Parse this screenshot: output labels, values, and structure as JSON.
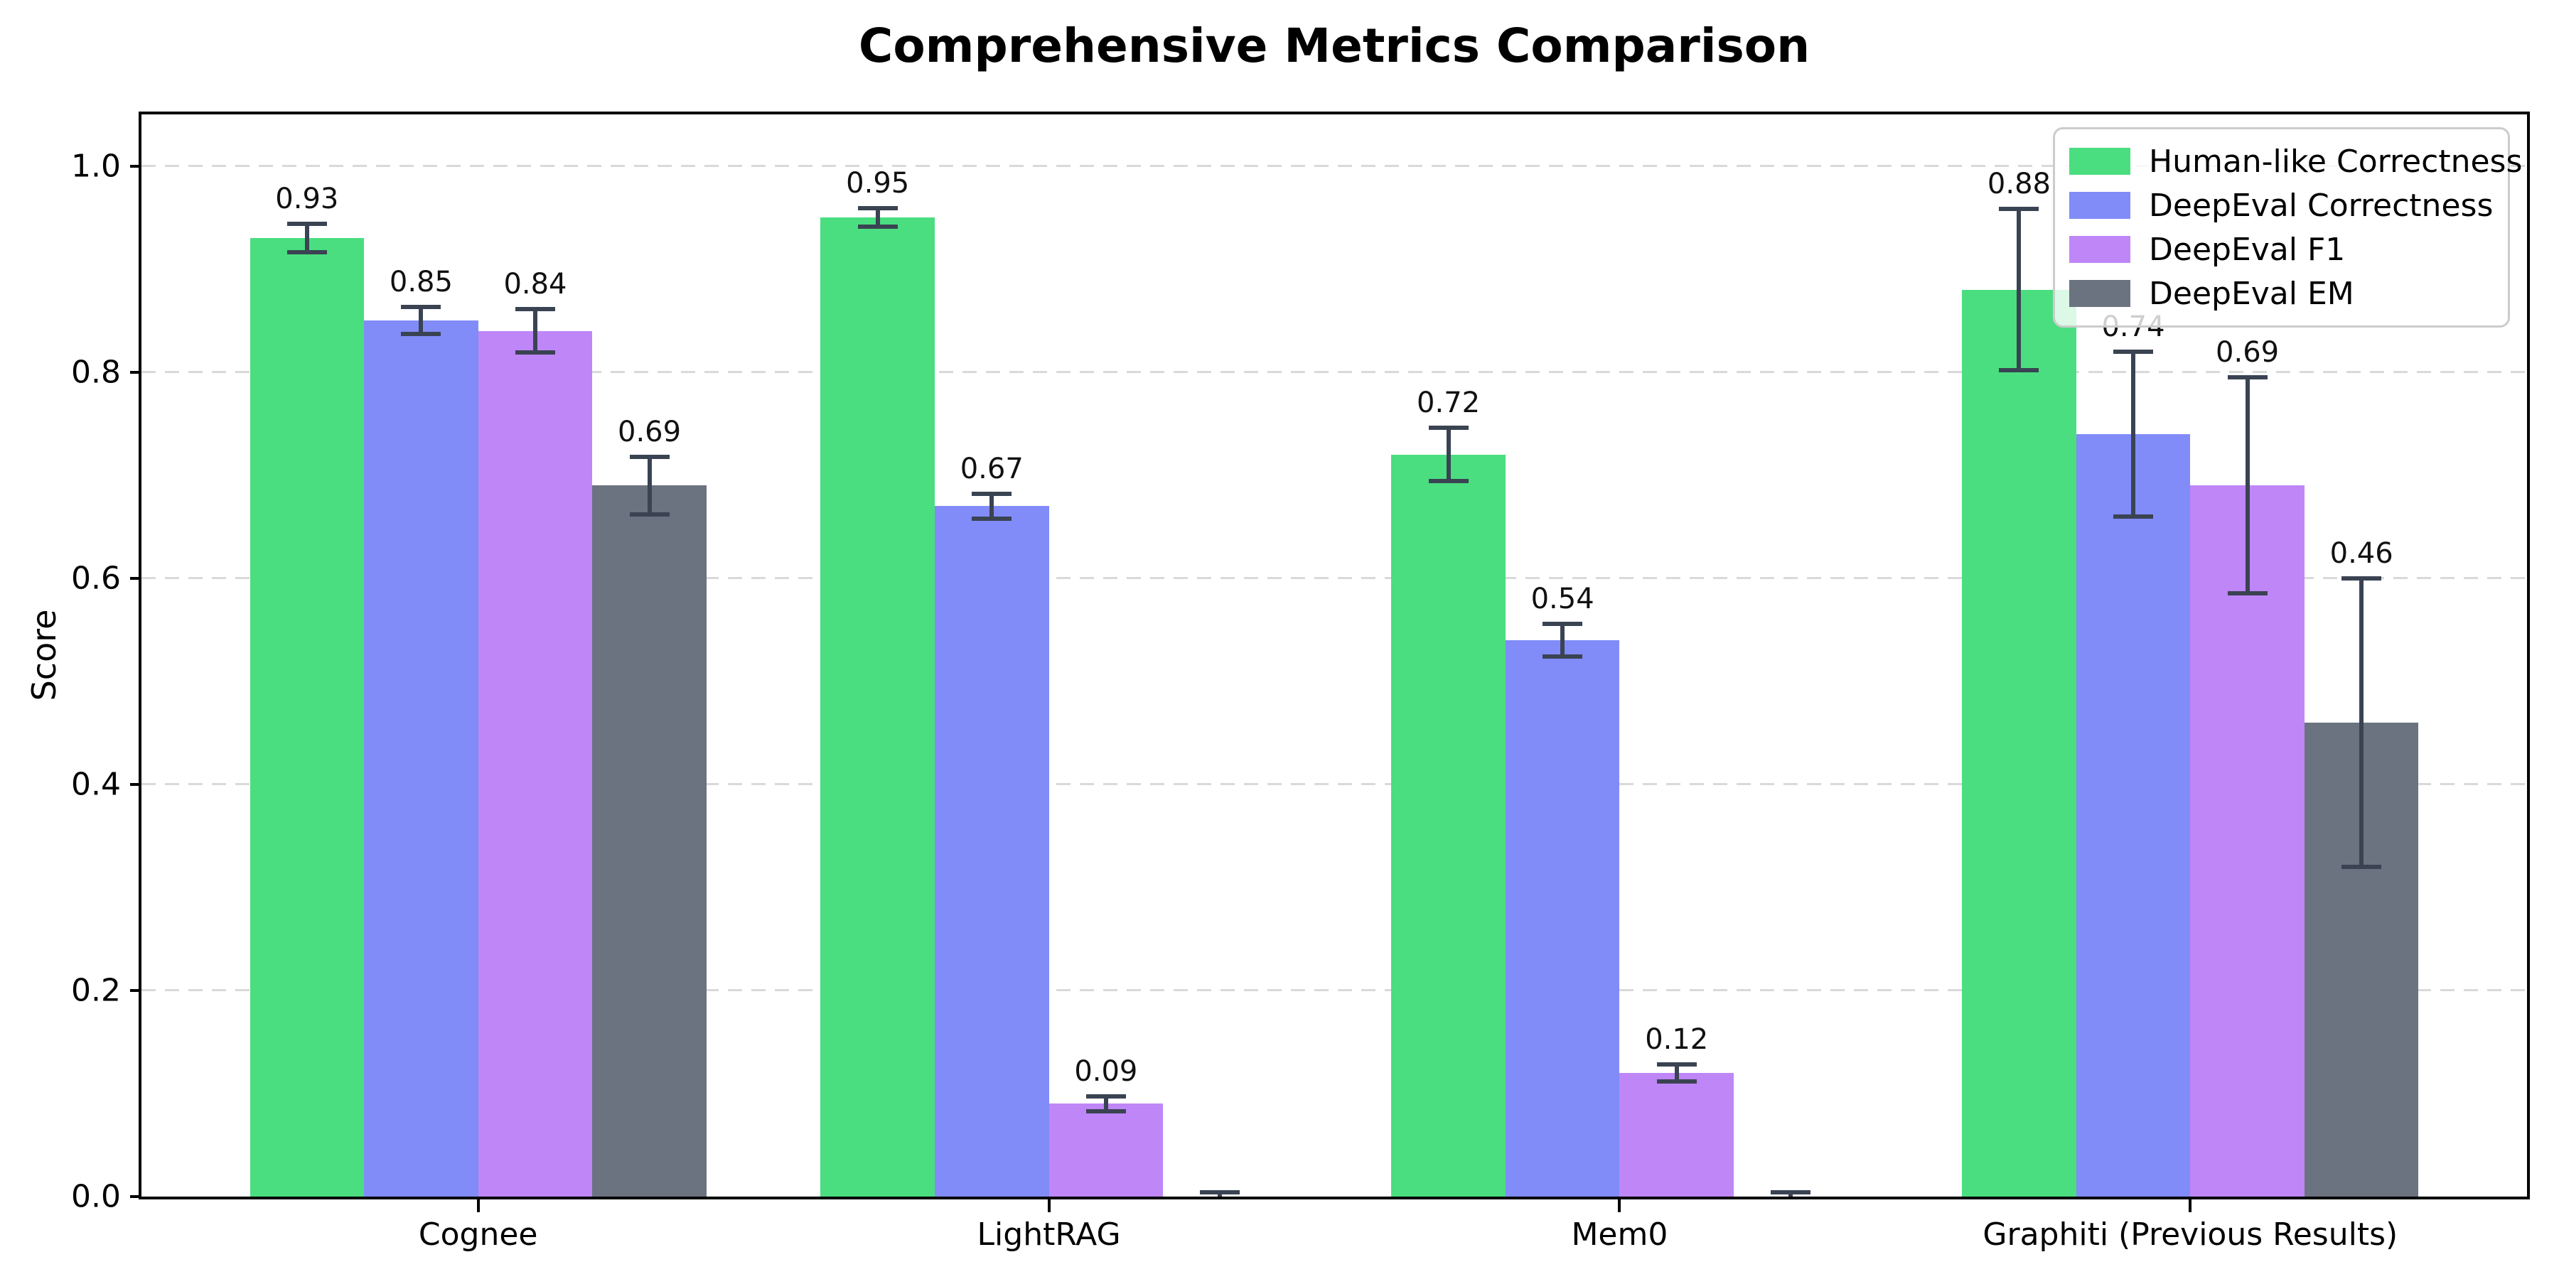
{
  "chart_data": {
    "type": "bar",
    "title": "Comprehensive Metrics Comparison",
    "ylabel": "Score",
    "xlabel": "",
    "categories": [
      "Cognee",
      "LightRAG",
      "Mem0",
      "Graphiti (Previous Results)"
    ],
    "series": [
      {
        "name": "Human-like Correctness",
        "color": "#4ade80",
        "values": [
          0.93,
          0.95,
          0.72,
          0.88
        ],
        "errors": [
          0.014,
          0.009,
          0.026,
          0.078
        ],
        "labels": [
          "0.93",
          "0.95",
          "0.72",
          "0.88"
        ]
      },
      {
        "name": "DeepEval Correctness",
        "color": "#818cf8",
        "values": [
          0.85,
          0.67,
          0.54,
          0.74
        ],
        "errors": [
          0.013,
          0.012,
          0.016,
          0.08
        ],
        "labels": [
          "0.85",
          "0.67",
          "0.54",
          "0.74"
        ]
      },
      {
        "name": "DeepEval F1",
        "color": "#bf86f7",
        "values": [
          0.84,
          0.09,
          0.12,
          0.69
        ],
        "errors": [
          0.021,
          0.007,
          0.008,
          0.105
        ],
        "labels": [
          "0.84",
          "0.09",
          "0.12",
          "0.69"
        ]
      },
      {
        "name": "DeepEval EM",
        "color": "#6b7280",
        "values": [
          0.69,
          0.0,
          0.0,
          0.46
        ],
        "errors": [
          0.028,
          0.004,
          0.004,
          0.14
        ],
        "labels": [
          "0.69",
          "",
          "",
          "0.46"
        ]
      }
    ],
    "yticks": [
      "0.0",
      "0.2",
      "0.4",
      "0.6",
      "0.8",
      "1.0"
    ],
    "ytick_values": [
      0,
      0.2,
      0.4,
      0.6,
      0.8,
      1.0
    ],
    "ylim": [
      0,
      1.05
    ],
    "grid": "horizontal-dashed",
    "legend_position": "upper-right",
    "colors": {
      "error_bar": "#3a4352",
      "grid": "#d9d9d9",
      "spine": "#000000",
      "text": "#111111"
    }
  }
}
